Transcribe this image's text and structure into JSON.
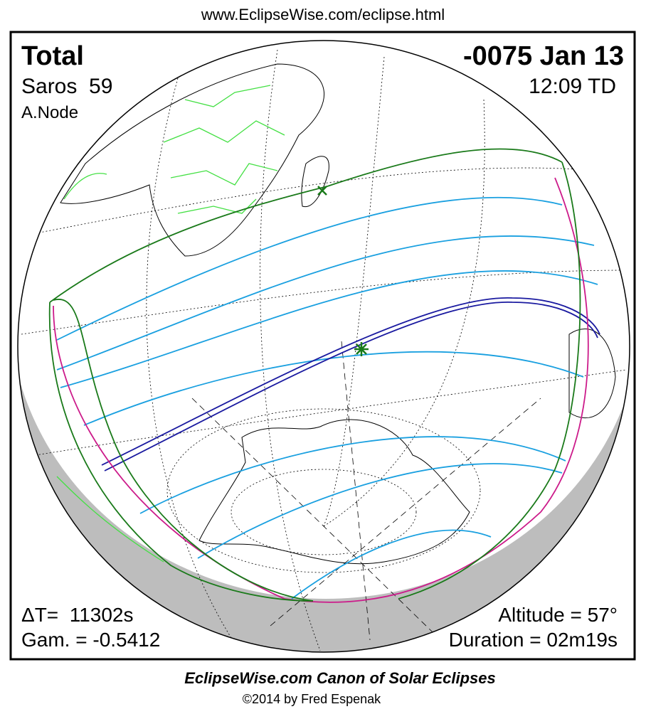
{
  "header": {
    "url": "www.EclipseWise.com/eclipse.html"
  },
  "panel": {
    "eclipse_type": "Total",
    "saros": "Saros  59",
    "node": "A.Node",
    "date": "-0075 Jan 13",
    "time": "12:09 TD",
    "delta_t": "ΔT=  11302s",
    "gamma": "Gam. = -0.5412",
    "altitude": "Altitude = 57°",
    "duration": "Duration = 02m19s"
  },
  "footer": {
    "title": "EclipseWise.com Canon of Solar Eclipses",
    "credit": "©2014 by Fred Espenak"
  }
}
